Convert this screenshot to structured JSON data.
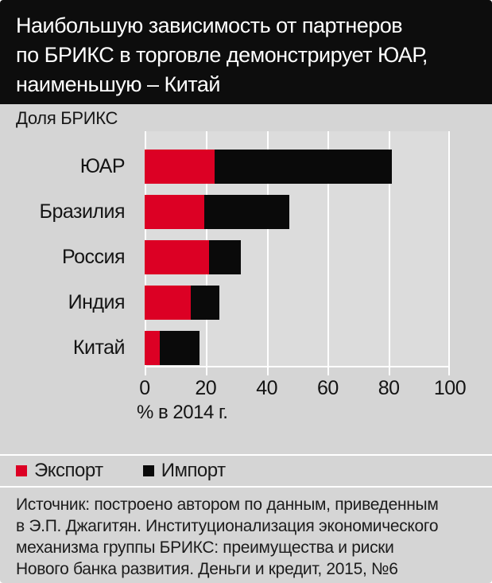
{
  "header": {
    "title_lines": [
      "Наибольшую зависимость от партнеров",
      "по БРИКС в торговле демонстрирует ЮАР,",
      "наименьшую – Китай"
    ]
  },
  "chart": {
    "subtitle": "Доля БРИКС",
    "xlabel": "% в 2014 г."
  },
  "chart_data": {
    "type": "bar",
    "orientation": "horizontal",
    "stacked": true,
    "title": "Доля БРИКС",
    "xlabel": "% в 2014 г.",
    "xlim": [
      0,
      100
    ],
    "xticks": [
      0,
      20,
      40,
      60,
      80,
      100
    ],
    "grid": true,
    "legend_position": "bottom",
    "categories": [
      "ЮАР",
      "Бразилия",
      "Россия",
      "Индия",
      "Китай"
    ],
    "series": [
      {
        "name": "Экспорт",
        "color": "#dc0024",
        "values": [
          23,
          19.5,
          21,
          15,
          5
        ]
      },
      {
        "name": "Импорт",
        "color": "#0a0a0a",
        "values": [
          58,
          28,
          10.5,
          9.5,
          13
        ]
      }
    ]
  },
  "legend": {
    "items": [
      {
        "label": "Экспорт",
        "color": "#dc0024"
      },
      {
        "label": "Импорт",
        "color": "#0a0a0a"
      }
    ]
  },
  "source": {
    "lines": [
      "Источник: построено автором по данным, приведенным",
      "в Э.П. Джагитян. Институционализация экономического",
      "механизма группы БРИКС: преимущества и риски",
      "Нового банка развития. Деньги и кредит, 2015, №6"
    ]
  },
  "colors": {
    "header_bg": "#0d0d0d",
    "page_bg": "#d5d5d5",
    "plot_bg": "#dcdcdc",
    "gridline": "#ffffff",
    "export_red": "#dc0024",
    "import_black": "#0a0a0a"
  }
}
